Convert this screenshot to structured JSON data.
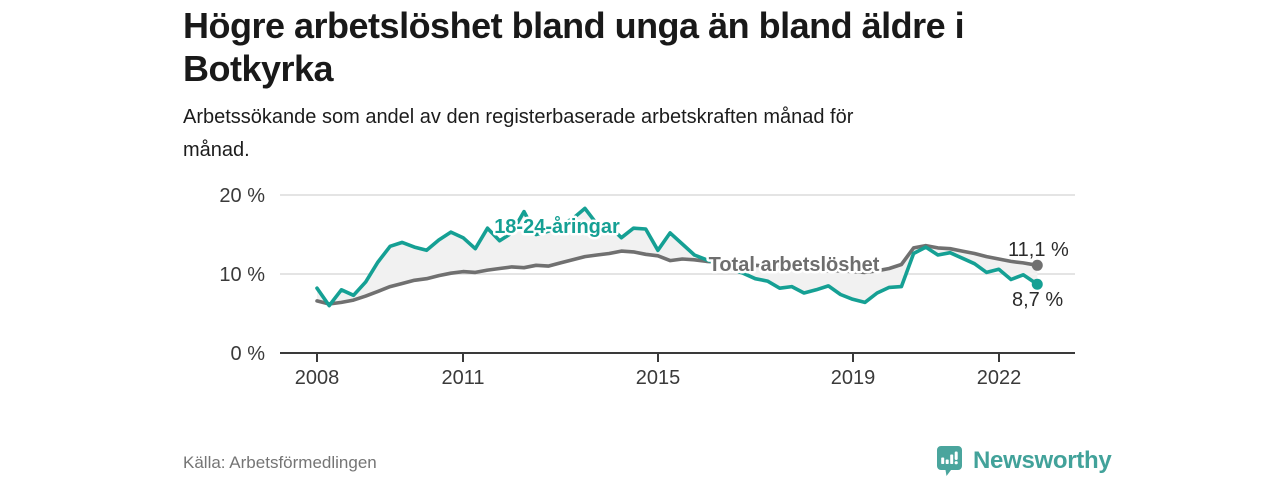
{
  "header": {
    "title_line1": "Högre arbetslöshet bland unga än bland äldre i",
    "title_line2": "Botkyrka",
    "subtitle_line1": "Arbetssökande som andel av den registerbaserade arbetskraften månad för",
    "subtitle_line2": "månad."
  },
  "chart_data": {
    "type": "line",
    "title": "Högre arbetslöshet bland unga än bland äldre i Botkyrka",
    "subtitle": "Arbetssökande som andel av den registerbaserade arbetskraften månad för månad.",
    "unit": "%",
    "ylim": [
      0,
      20
    ],
    "y_tick_labels": [
      "0 %",
      "10 %",
      "20 %"
    ],
    "x_tick_labels": [
      "2008",
      "2011",
      "2015",
      "2019",
      "2022"
    ],
    "x_tick_years": [
      2008,
      2011,
      2015,
      2019,
      2022
    ],
    "grid": "horizontal",
    "legend_position": "inline-labels",
    "area_between_color": "#f1f1f1",
    "x": [
      2008.0,
      2008.25,
      2008.5,
      2008.75,
      2009.0,
      2009.25,
      2009.5,
      2009.75,
      2010.0,
      2010.25,
      2010.5,
      2010.75,
      2011.0,
      2011.25,
      2011.5,
      2011.75,
      2012.0,
      2012.25,
      2012.5,
      2012.75,
      2013.0,
      2013.25,
      2013.5,
      2013.75,
      2014.0,
      2014.25,
      2014.5,
      2014.75,
      2015.0,
      2015.25,
      2015.5,
      2015.75,
      2016.0,
      2016.25,
      2016.5,
      2016.75,
      2017.0,
      2017.25,
      2017.5,
      2017.75,
      2018.0,
      2018.25,
      2018.5,
      2018.75,
      2019.0,
      2019.25,
      2019.5,
      2019.75,
      2020.0,
      2020.25,
      2020.5,
      2020.75,
      2021.0,
      2021.25,
      2021.5,
      2021.75,
      2022.0,
      2022.25,
      2022.5,
      2022.79
    ],
    "series": [
      {
        "name": "18-24-åringar",
        "color": "#15a094",
        "end_label": "8,7 %",
        "end_value": 8.7,
        "values": [
          8.2,
          6.0,
          8.0,
          7.3,
          9.0,
          11.5,
          13.5,
          14.0,
          13.4,
          13.0,
          14.3,
          15.3,
          14.6,
          13.2,
          15.8,
          14.2,
          15.2,
          17.9,
          15.0,
          15.4,
          16.2,
          17.0,
          18.3,
          16.3,
          16.1,
          14.6,
          15.8,
          15.7,
          13.0,
          15.2,
          13.8,
          12.4,
          11.8,
          11.2,
          10.6,
          10.1,
          9.4,
          9.1,
          8.2,
          8.4,
          7.6,
          8.0,
          8.5,
          7.4,
          6.8,
          6.4,
          7.6,
          8.3,
          8.4,
          12.6,
          13.4,
          12.4,
          12.7,
          12.0,
          11.3,
          10.2,
          10.6,
          9.3,
          9.9,
          8.7
        ]
      },
      {
        "name": "Total arbetslöshet",
        "color": "#707070",
        "end_label": "11,1 %",
        "end_value": 11.1,
        "values": [
          6.6,
          6.2,
          6.4,
          6.7,
          7.2,
          7.8,
          8.4,
          8.8,
          9.2,
          9.4,
          9.8,
          10.1,
          10.3,
          10.2,
          10.5,
          10.7,
          10.9,
          10.8,
          11.1,
          11.0,
          11.4,
          11.8,
          12.2,
          12.4,
          12.6,
          12.9,
          12.8,
          12.5,
          12.3,
          11.7,
          11.9,
          11.8,
          11.6,
          11.5,
          11.4,
          11.2,
          11.1,
          11.0,
          10.9,
          10.8,
          10.6,
          10.5,
          10.4,
          10.4,
          10.3,
          10.2,
          10.4,
          10.7,
          11.2,
          13.3,
          13.6,
          13.3,
          13.2,
          12.9,
          12.6,
          12.2,
          11.9,
          11.6,
          11.4,
          11.1
        ]
      }
    ]
  },
  "footer": {
    "source": "Källa: Arbetsförmedlingen",
    "brand": "Newsworthy"
  }
}
